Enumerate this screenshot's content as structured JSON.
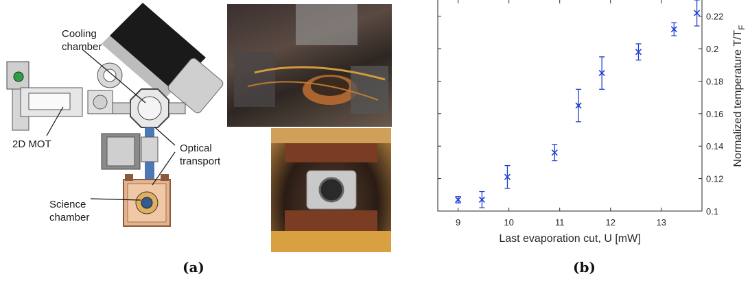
{
  "panel_a": {
    "label": "(a)",
    "callouts": {
      "cooling": "Cooling\nchamber",
      "mot": "2D MOT",
      "transport": "Optical\ntransport",
      "science": "Science\nchamber"
    }
  },
  "panel_b": {
    "label": "(b)"
  },
  "chart_data": {
    "type": "scatter",
    "xlabel": "Last evaporation cut, U [mW]",
    "ylabel_main": "Normalized temperature T/T",
    "ylabel_sub": "F",
    "xlim": [
      8.6,
      13.8
    ],
    "ylim": [
      0.1,
      0.23
    ],
    "x_ticks": [
      9,
      10,
      11,
      12,
      13
    ],
    "y_ticks": [
      0.1,
      0.12,
      0.14,
      0.16,
      0.18,
      0.2,
      0.22
    ],
    "y_tick_labels": [
      "0.1",
      "0.12",
      "0.14",
      "0.16",
      "0.18",
      "0.2",
      "0.22"
    ],
    "y_axis_side": "right",
    "marker": "x",
    "color": "#1f3fd0",
    "points": [
      {
        "x": 9.0,
        "y": 0.107,
        "err": 0.002
      },
      {
        "x": 9.47,
        "y": 0.107,
        "err": 0.005
      },
      {
        "x": 9.97,
        "y": 0.121,
        "err": 0.007
      },
      {
        "x": 10.9,
        "y": 0.136,
        "err": 0.005
      },
      {
        "x": 11.37,
        "y": 0.165,
        "err": 0.01
      },
      {
        "x": 11.83,
        "y": 0.185,
        "err": 0.01
      },
      {
        "x": 12.55,
        "y": 0.198,
        "err": 0.005
      },
      {
        "x": 13.25,
        "y": 0.212,
        "err": 0.004
      },
      {
        "x": 13.7,
        "y": 0.222,
        "err": 0.008
      }
    ]
  }
}
